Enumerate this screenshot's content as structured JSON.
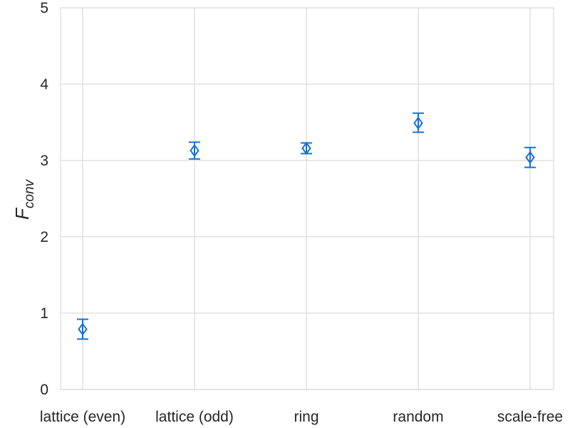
{
  "chart_data": {
    "type": "scatter",
    "categories": [
      "lattice (even)",
      "lattice (odd)",
      "ring",
      "random",
      "scale-free"
    ],
    "values": [
      0.79,
      3.13,
      3.16,
      3.49,
      3.04
    ],
    "error_low": [
      0.66,
      3.02,
      3.09,
      3.37,
      2.91
    ],
    "error_high": [
      0.92,
      3.24,
      3.23,
      3.62,
      3.17
    ],
    "ylim": [
      0,
      5
    ],
    "yticks": [
      "0",
      "1",
      "2",
      "3",
      "4",
      "5"
    ],
    "ylabel_main": "F",
    "ylabel_sub": "conv",
    "xlabel": "",
    "title": "",
    "grid": true,
    "marker": "diamond-open",
    "color": "#1a6fd6"
  }
}
